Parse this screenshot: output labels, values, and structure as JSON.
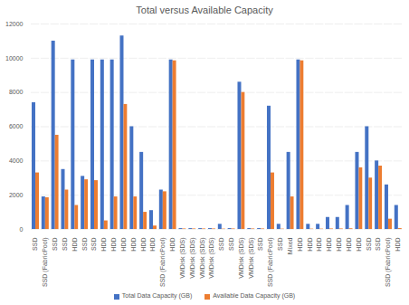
{
  "chart_data": {
    "type": "bar",
    "title": "Total versus Available Capacity",
    "categories": [
      "SSD",
      "SSD (FabricPool)",
      "SSD",
      "SSD",
      "HDD",
      "SSD",
      "SSD",
      "HDD",
      "HDD",
      "HDD",
      "HDD",
      "HDD",
      "HDD",
      "SSD (FabricPool)",
      "HDD",
      "VMDisk (SDS)",
      "VMDisk (SDS)",
      "VMDisk (SDS)",
      "VMDisk (SDS)",
      "SSD",
      "SSD",
      "VMDisk (SDS)",
      "VMDisk (SDS)",
      "SSD",
      "SSD (FabricPool)",
      "SSD",
      "Mixed",
      "HDD",
      "HDD",
      "HDD",
      "HDD",
      "HDD",
      "HDD",
      "HDD",
      "SSD",
      "SSD",
      "SSD (FabricPool)",
      "HDD"
    ],
    "series": [
      {
        "name": "Total Data Capacity (GB)",
        "color": "#4472c4",
        "values": [
          7400,
          1900,
          11000,
          3500,
          9900,
          3100,
          9900,
          9900,
          9900,
          11300,
          6000,
          4500,
          1100,
          2300,
          9900,
          50,
          50,
          50,
          50,
          300,
          50,
          8600,
          50,
          50,
          7200,
          300,
          4500,
          9900,
          300,
          300,
          700,
          700,
          1400,
          4500,
          6000,
          4000,
          2600,
          1400
        ]
      },
      {
        "name": "Available Data Capacity (GB)",
        "color": "#ed7d31",
        "values": [
          3300,
          1850,
          5500,
          2300,
          1400,
          2900,
          2850,
          500,
          1900,
          7300,
          1900,
          1000,
          200,
          2200,
          9850,
          30,
          30,
          30,
          30,
          20,
          30,
          8000,
          30,
          30,
          3300,
          20,
          1900,
          9850,
          20,
          20,
          30,
          30,
          40,
          3600,
          3000,
          3700,
          600,
          50
        ]
      }
    ],
    "ylim": [
      0,
      12000
    ],
    "yticks": [
      0,
      2000,
      4000,
      6000,
      8000,
      10000,
      12000
    ],
    "grid": true,
    "legend": "bottom"
  }
}
